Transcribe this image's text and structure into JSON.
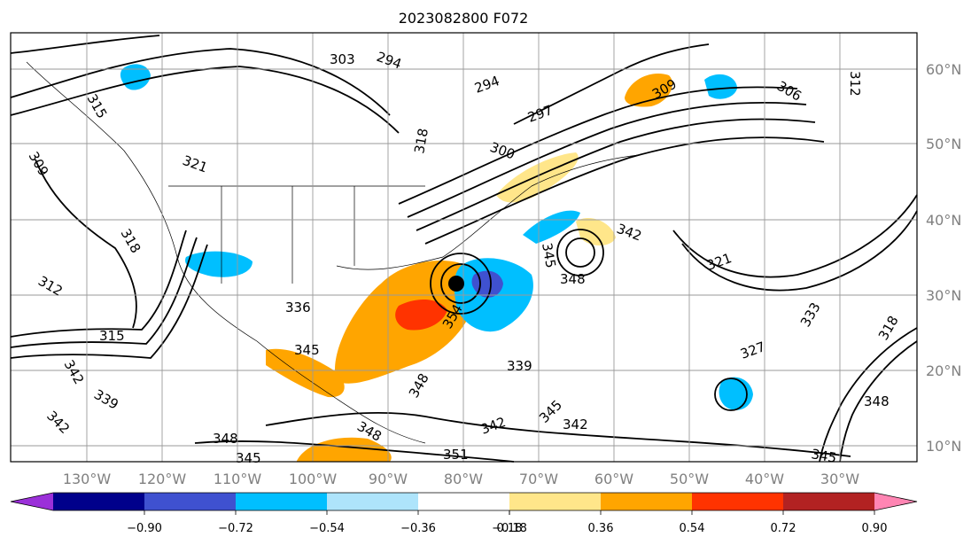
{
  "title": "2023082800 F072",
  "map": {
    "lat_labels": [
      "60°N",
      "50°N",
      "40°N",
      "30°N",
      "20°N",
      "10°N"
    ],
    "lon_labels": [
      "130°W",
      "120°W",
      "110°W",
      "100°W",
      "90°W",
      "80°W",
      "70°W",
      "60°W",
      "50°W",
      "40°W",
      "30°W"
    ],
    "contour_labels": [
      "303",
      "294",
      "294",
      "297",
      "300",
      "318",
      "309",
      "306",
      "312",
      "315",
      "309",
      "321",
      "318",
      "312",
      "315",
      "342",
      "339",
      "342",
      "348",
      "345",
      "336",
      "345",
      "348",
      "354",
      "342",
      "345",
      "339",
      "348",
      "342",
      "345",
      "333",
      "327",
      "321",
      "318",
      "348",
      "345",
      "342",
      "348",
      "351"
    ],
    "storm_marker": "hurricane-center"
  },
  "colorbar": {
    "ticks": [
      "−0.90",
      "−0.72",
      "−0.54",
      "−0.36",
      "−0.18",
      "0.18",
      "0.36",
      "0.54",
      "0.72",
      "0.90"
    ],
    "colors": {
      "below": "#9b30d9",
      "bins": [
        "#00008b",
        "#3f51d0",
        "#00bfff",
        "#aee4fb",
        "#ffffff",
        "#ffe68a",
        "#ffa500",
        "#ff3300",
        "#b22222"
      ],
      "above": "#ff85b3"
    }
  }
}
